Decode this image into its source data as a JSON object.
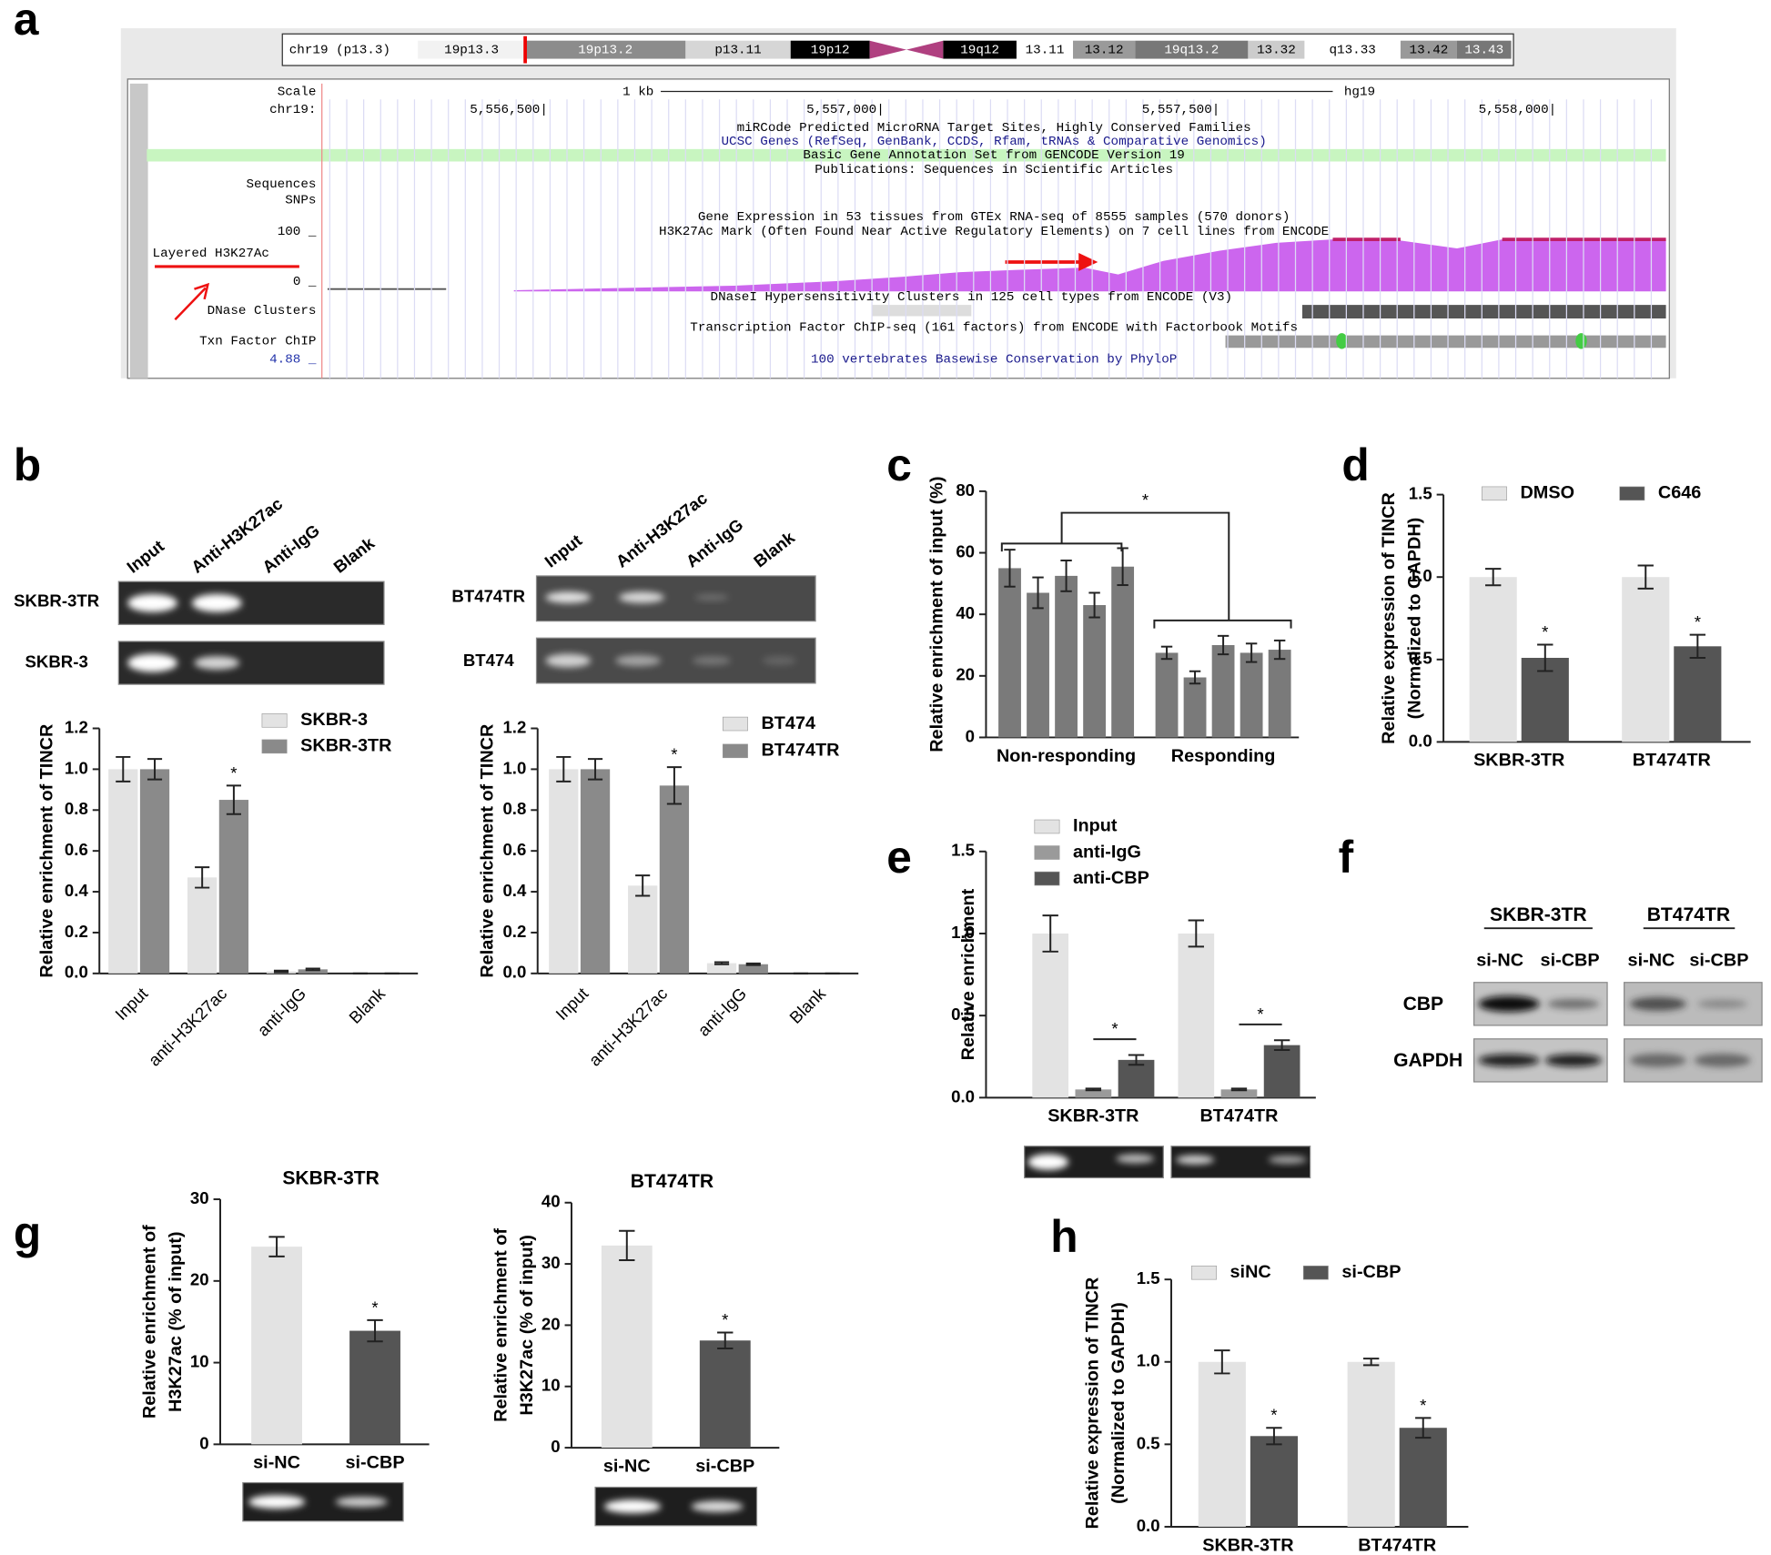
{
  "panel_labels": [
    "a",
    "b",
    "c",
    "d",
    "e",
    "f",
    "g",
    "h"
  ],
  "genome_browser": {
    "ideogram": {
      "label": "chr19 (p13.3)",
      "bands": [
        "19p13.3",
        "19p13.2",
        "p13.11",
        "19p12",
        "19q12",
        "13.11",
        "13.12",
        "19q13.2",
        "13.32",
        "q13.33",
        "13.42",
        "13.43"
      ]
    },
    "track_labels": [
      "Scale",
      "chr19:",
      "Sequences",
      "SNPs",
      "100 _",
      "Layered H3K27Ac",
      "0 _",
      "DNase Clusters",
      "Txn Factor ChIP",
      "4.88 _"
    ],
    "scale": "1 kb",
    "assembly": "hg19",
    "positions": [
      "5,556,500|",
      "5,557,000|",
      "5,557,500|",
      "5,558,000|"
    ],
    "track_titles": [
      "miRCode Predicted MicroRNA Target Sites, Highly Conserved Families",
      "UCSC Genes (RefSeq, GenBank, CCDS, Rfam, tRNAs & Comparative Genomics)",
      "Basic Gene Annotation Set from GENCODE Version 19",
      "Publications: Sequences in Scientific Articles",
      "Gene Expression in 53 tissues from GTEx RNA-seq of 8555 samples (570 donors)",
      "H3K27Ac Mark (Often Found Near Active Regulatory Elements) on 7 cell lines from ENCODE",
      "DNaseI Hypersensitivity Clusters in 125 cell types from ENCODE (V3)",
      "Transcription Factor ChIP-seq (161 factors) from ENCODE with Factorbook Motifs",
      "100 vertebrates Basewise Conservation by PhyloP"
    ]
  },
  "gel_b": {
    "lanes": [
      "Input",
      "Anti-H3K27ac",
      "Anti-IgG",
      "Blank"
    ],
    "left_rows": [
      "SKBR-3TR",
      "SKBR-3"
    ],
    "right_rows": [
      "BT474TR",
      "BT474"
    ]
  },
  "blot_f": {
    "groups": [
      "SKBR-3TR",
      "BT474TR"
    ],
    "lanes": [
      "si-NC",
      "si-CBP",
      "si-NC",
      "si-CBP"
    ],
    "rows": [
      "CBP",
      "GAPDH"
    ]
  },
  "chart_data": [
    {
      "type": "bar",
      "ylabel": "Relative enrichment of TINCR",
      "categories": [
        "Input",
        "anti-H3K27ac",
        "anti-IgG",
        "Blank"
      ],
      "series": [
        {
          "name": "SKBR-3",
          "color": "#e3e3e3",
          "values": [
            1.0,
            0.47,
            0.01,
            0
          ],
          "errors": [
            0.06,
            0.05,
            0.004,
            0
          ],
          "annotations": [
            null,
            null,
            null,
            null
          ]
        },
        {
          "name": "SKBR-3TR",
          "color": "#8a8a8a",
          "values": [
            1.0,
            0.85,
            0.02,
            0
          ],
          "errors": [
            0.05,
            0.07,
            0.004,
            0
          ],
          "annotations": [
            null,
            "*",
            null,
            null
          ]
        }
      ],
      "ylim": [
        0,
        1.2
      ],
      "yticks": [
        {
          "value": 0,
          "label": "0.0"
        },
        0.2,
        0.4,
        0.6,
        0.8,
        {
          "value": 1,
          "label": "1.0"
        },
        1.2
      ]
    },
    {
      "type": "bar",
      "ylabel": "Relative enrichment of TINCR",
      "categories": [
        "Input",
        "anti-H3K27ac",
        "anti-IgG",
        "Blank"
      ],
      "series": [
        {
          "name": "BT474",
          "color": "#e3e3e3",
          "values": [
            1.0,
            0.43,
            0.05,
            0
          ],
          "errors": [
            0.06,
            0.05,
            0.005,
            0
          ],
          "annotations": [
            null,
            null,
            null,
            null
          ]
        },
        {
          "name": "BT474TR",
          "color": "#8a8a8a",
          "values": [
            1.0,
            0.92,
            0.045,
            0
          ],
          "errors": [
            0.05,
            0.09,
            0.004,
            0
          ],
          "annotations": [
            null,
            "*",
            null,
            null
          ]
        }
      ],
      "ylim": [
        0,
        1.2
      ],
      "yticks": [
        {
          "value": 0,
          "label": "0.0"
        },
        0.2,
        0.4,
        0.6,
        0.8,
        {
          "value": 1,
          "label": "1.0"
        },
        1.2
      ]
    },
    {
      "type": "bar",
      "ylabel": "Relative enrichment of input (%)",
      "categories": [
        "Non-responding",
        "Responding"
      ],
      "series": [
        {
          "color": "#7a7a7a",
          "values": [
            55,
            27.5
          ],
          "errors": [
            6,
            2
          ]
        },
        {
          "color": "#7a7a7a",
          "values": [
            47,
            19.5
          ],
          "errors": [
            5,
            2
          ]
        },
        {
          "color": "#7a7a7a",
          "values": [
            52.5,
            30
          ],
          "errors": [
            5,
            3
          ]
        },
        {
          "color": "#7a7a7a",
          "values": [
            43,
            27.5
          ],
          "errors": [
            4,
            3
          ]
        },
        {
          "color": "#7a7a7a",
          "values": [
            55.5,
            28.5
          ],
          "errors": [
            6,
            3
          ]
        }
      ],
      "annotation": "*",
      "ylim": [
        0,
        80
      ],
      "yticks": [
        0,
        20,
        40,
        60,
        80
      ]
    },
    {
      "type": "bar",
      "ylabel": [
        "Relative expression of TINCR",
        "(Normalized to GAPDH)"
      ],
      "categories": [
        "SKBR-3TR",
        "BT474TR"
      ],
      "series": [
        {
          "name": "DMSO",
          "color": "#e3e3e3",
          "values": [
            1.0,
            1.0
          ],
          "errors": [
            0.05,
            0.07
          ],
          "annotations": [
            null,
            null
          ]
        },
        {
          "name": "C646",
          "color": "#555555",
          "values": [
            0.51,
            0.58
          ],
          "errors": [
            0.08,
            0.07
          ],
          "annotations": [
            "*",
            "*"
          ]
        }
      ],
      "ylim": [
        0,
        1.5
      ],
      "yticks": [
        {
          "value": 0,
          "label": "0.0"
        },
        0.5,
        {
          "value": 1,
          "label": "1.0"
        },
        1.5
      ]
    },
    {
      "type": "bar",
      "ylabel": "Relative enrichment",
      "categories": [
        "SKBR-3TR",
        "BT474TR"
      ],
      "series": [
        {
          "name": "Input",
          "color": "#e3e3e3",
          "values": [
            1.0,
            1.0
          ],
          "errors": [
            0.11,
            0.08
          ],
          "annotations": [
            null,
            null
          ]
        },
        {
          "name": "anti-IgG",
          "color": "#9a9a9a",
          "values": [
            0.05,
            0.05
          ],
          "errors": [
            0.005,
            0.005
          ],
          "annotations": [
            null,
            null
          ]
        },
        {
          "name": "anti-CBP",
          "color": "#555555",
          "values": [
            0.23,
            0.32
          ],
          "errors": [
            0.03,
            0.03
          ],
          "annotations": [
            "*",
            "*"
          ]
        }
      ],
      "ylim": [
        0,
        1.5
      ],
      "yticks": [
        {
          "value": 0,
          "label": "0.0"
        },
        0.5,
        {
          "value": 1,
          "label": "1.0"
        },
        1.5
      ]
    },
    {
      "type": "bar",
      "title": "SKBR-3TR",
      "ylabel": [
        "Relative enrichment of",
        "H3K27ac (% of input)"
      ],
      "categories": [
        "si-NC",
        "si-CBP"
      ],
      "series": [
        {
          "colors": [
            "#e3e3e3",
            "#555555"
          ],
          "values": [
            24.2,
            13.9
          ],
          "errors": [
            1.2,
            1.3
          ],
          "annotations": [
            null,
            "*"
          ]
        }
      ],
      "ylim": [
        0,
        30
      ],
      "yticks": [
        0,
        10,
        20,
        30
      ]
    },
    {
      "type": "bar",
      "title": "BT474TR",
      "ylabel": [
        "Relative enrichment of",
        "H3K27ac (% of input)"
      ],
      "categories": [
        "si-NC",
        "si-CBP"
      ],
      "series": [
        {
          "colors": [
            "#e3e3e3",
            "#555555"
          ],
          "values": [
            33,
            17.5
          ],
          "errors": [
            2.4,
            1.3
          ],
          "annotations": [
            null,
            "*"
          ]
        }
      ],
      "ylim": [
        0,
        40
      ],
      "yticks": [
        0,
        10,
        20,
        30,
        40
      ]
    },
    {
      "type": "bar",
      "ylabel": [
        "Relative expression of TINCR",
        "(Normalized to GAPDH)"
      ],
      "categories": [
        "SKBR-3TR",
        "BT474TR"
      ],
      "series": [
        {
          "name": "siNC",
          "color": "#e3e3e3",
          "values": [
            1.0,
            1.0
          ],
          "errors": [
            0.07,
            0.02
          ],
          "annotations": [
            null,
            null
          ]
        },
        {
          "name": "si-CBP",
          "color": "#555555",
          "values": [
            0.55,
            0.6
          ],
          "errors": [
            0.05,
            0.06
          ],
          "annotations": [
            "*",
            "*"
          ]
        }
      ],
      "ylim": [
        0,
        1.5
      ],
      "yticks": [
        {
          "value": 0,
          "label": "0.0"
        },
        0.5,
        {
          "value": 1,
          "label": "1.0"
        },
        1.5
      ]
    }
  ]
}
